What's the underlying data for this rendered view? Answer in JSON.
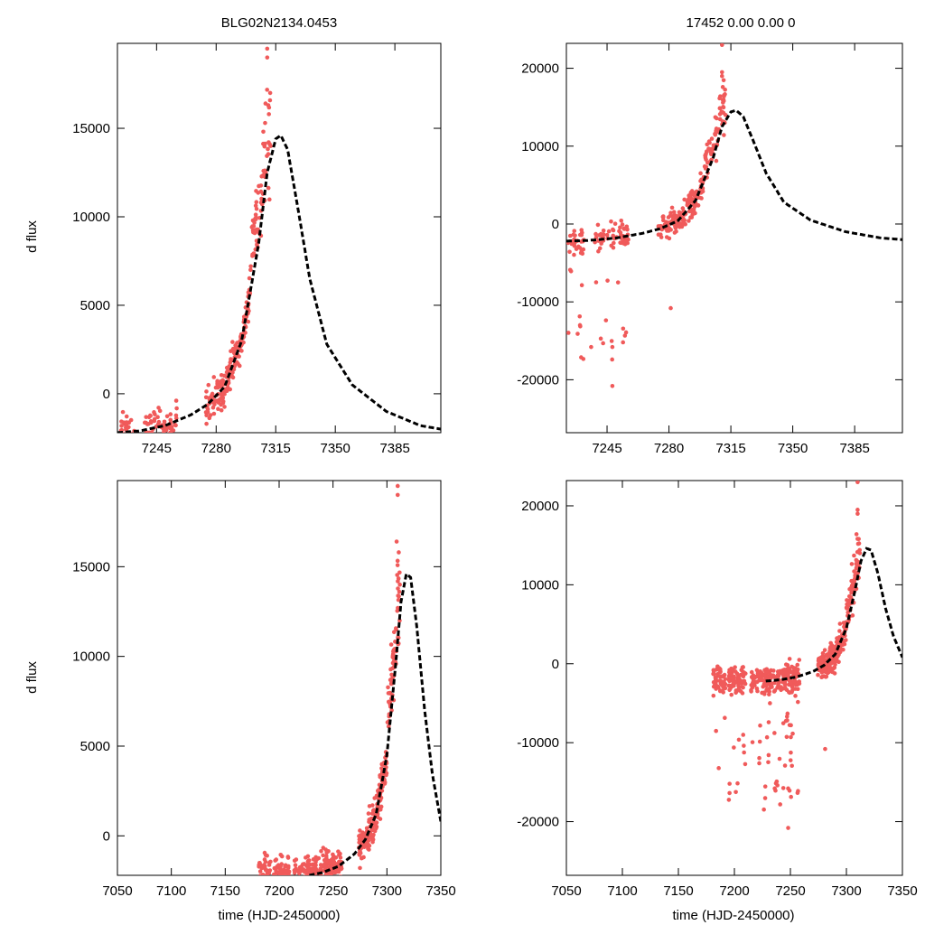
{
  "figure": {
    "title_left": "BLG02N2134.0453",
    "title_right": "17452  0.00  0.00  0",
    "ylabel": "d flux",
    "xlabel": "time (HJD-2450000)",
    "data_color": "#f05a5a",
    "model_color": "#000000"
  },
  "chart_data": [
    {
      "type": "scatter",
      "panel": "top-left",
      "title": "BLG02N2134.0453",
      "ylabel": "d flux",
      "xlabel": "",
      "xlim": [
        7222,
        7412
      ],
      "ylim": [
        -2200,
        19800
      ],
      "xticks": [
        7245,
        7280,
        7315,
        7350,
        7385
      ],
      "yticks": [
        0,
        5000,
        10000,
        15000
      ],
      "series": [
        {
          "name": "data",
          "style": "points"
        },
        {
          "name": "model",
          "style": "dashed-line",
          "x": [
            7222,
            7235,
            7250,
            7265,
            7275,
            7285,
            7295,
            7305,
            7310,
            7315,
            7318,
            7322,
            7328,
            7335,
            7345,
            7360,
            7380,
            7400,
            7412
          ],
          "y": [
            -2200,
            -2100,
            -1800,
            -1200,
            -600,
            400,
            3000,
            8500,
            12500,
            14400,
            14600,
            13800,
            10500,
            6500,
            2800,
            500,
            -1000,
            -1800,
            -2000
          ]
        }
      ]
    },
    {
      "type": "scatter",
      "panel": "top-right",
      "title": "17452  0.00  0.00  0",
      "ylabel": "",
      "xlabel": "",
      "xlim": [
        7222,
        7412
      ],
      "ylim": [
        -26800,
        23200
      ],
      "xticks": [
        7245,
        7280,
        7315,
        7350,
        7385
      ],
      "yticks": [
        -20000,
        -10000,
        0,
        10000,
        20000
      ],
      "series": [
        {
          "name": "data",
          "style": "points"
        },
        {
          "name": "model",
          "style": "dashed-line",
          "x": [
            7222,
            7235,
            7250,
            7265,
            7275,
            7285,
            7295,
            7305,
            7310,
            7315,
            7318,
            7322,
            7328,
            7335,
            7345,
            7360,
            7380,
            7400,
            7412
          ],
          "y": [
            -2200,
            -2100,
            -1800,
            -1200,
            -600,
            400,
            3000,
            8500,
            12500,
            14400,
            14600,
            13800,
            10500,
            6500,
            2800,
            500,
            -1000,
            -1800,
            -2000
          ]
        }
      ]
    },
    {
      "type": "scatter",
      "panel": "bottom-left",
      "title": "",
      "ylabel": "d flux",
      "xlabel": "time (HJD-2450000)",
      "xlim": [
        7050,
        7350
      ],
      "ylim": [
        -2200,
        19800
      ],
      "xticks": [
        7050,
        7100,
        7150,
        7200,
        7250,
        7300,
        7350
      ],
      "yticks": [
        0,
        5000,
        10000,
        15000
      ],
      "series": [
        {
          "name": "data",
          "style": "points"
        },
        {
          "name": "model",
          "style": "dashed-line",
          "x": [
            7228,
            7240,
            7255,
            7270,
            7280,
            7290,
            7300,
            7308,
            7313,
            7318,
            7322,
            7328,
            7335,
            7342,
            7350
          ],
          "y": [
            -2200,
            -2050,
            -1700,
            -1000,
            -200,
            1200,
            4500,
            9500,
            13000,
            14600,
            14400,
            11500,
            7000,
            3500,
            800
          ]
        }
      ]
    },
    {
      "type": "scatter",
      "panel": "bottom-right",
      "title": "",
      "ylabel": "",
      "xlabel": "time (HJD-2450000)",
      "xlim": [
        7050,
        7350
      ],
      "ylim": [
        -26800,
        23200
      ],
      "xticks": [
        7050,
        7100,
        7150,
        7200,
        7250,
        7300,
        7350
      ],
      "yticks": [
        -20000,
        -10000,
        0,
        10000,
        20000
      ],
      "series": [
        {
          "name": "data",
          "style": "points"
        },
        {
          "name": "model",
          "style": "dashed-line",
          "x": [
            7228,
            7240,
            7255,
            7270,
            7280,
            7290,
            7300,
            7308,
            7313,
            7318,
            7322,
            7328,
            7335,
            7342,
            7350
          ],
          "y": [
            -2200,
            -2050,
            -1700,
            -1000,
            -200,
            1200,
            4500,
            9500,
            13000,
            14600,
            14400,
            11500,
            7000,
            3500,
            800
          ]
        }
      ]
    }
  ]
}
